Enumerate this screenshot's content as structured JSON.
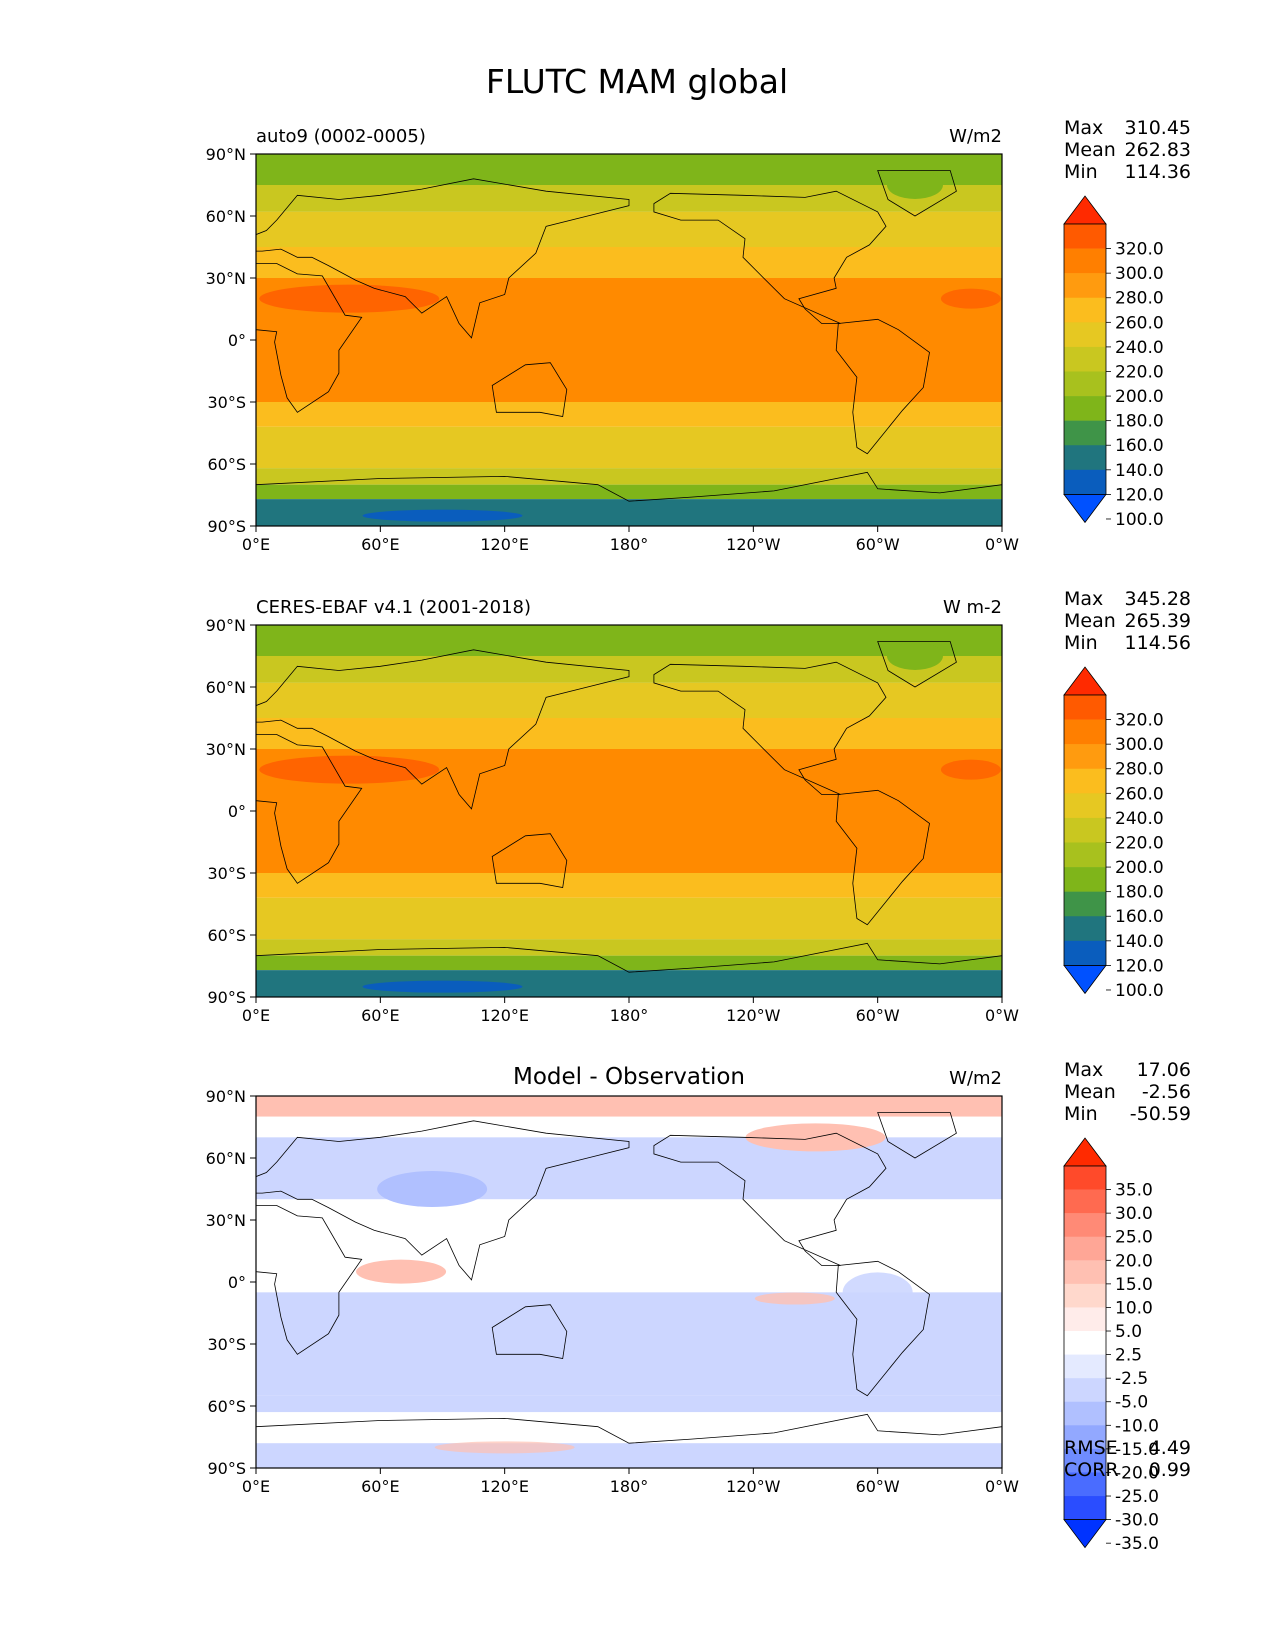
{
  "title": "FLUTC MAM global",
  "x_ticks": [
    "0°E",
    "60°E",
    "120°E",
    "180°",
    "120°W",
    "60°W",
    "0°W"
  ],
  "y_ticks": [
    "90°N",
    "60°N",
    "30°N",
    "0°",
    "30°S",
    "60°S",
    "90°S"
  ],
  "panels": [
    {
      "left_title": "auto9 (0002-0005)",
      "center_title": "",
      "units": "W/m2",
      "stats": [
        {
          "label": "Max",
          "value": "310.45"
        },
        {
          "label": "Mean",
          "value": "262.83"
        },
        {
          "label": "Min",
          "value": "114.36"
        }
      ],
      "colorbar_levels": [
        "320.0",
        "300.0",
        "280.0",
        "260.0",
        "240.0",
        "220.0",
        "200.0",
        "180.0",
        "160.0",
        "140.0",
        "120.0",
        "100.0"
      ],
      "colorbar_colors": [
        "#ff2a00",
        "#ff5a00",
        "#ff7f00",
        "#ff9b0f",
        "#fbbd1e",
        "#e6c822",
        "#c9c720",
        "#a8c11e",
        "#7fb51a",
        "#3f9448",
        "#20757e",
        "#0a5dbd",
        "#0051ff"
      ],
      "footer_stats": []
    },
    {
      "left_title": "CERES-EBAF v4.1 (2001-2018)",
      "center_title": "",
      "units": "W m-2",
      "stats": [
        {
          "label": "Max",
          "value": "345.28"
        },
        {
          "label": "Mean",
          "value": "265.39"
        },
        {
          "label": "Min",
          "value": "114.56"
        }
      ],
      "colorbar_levels": [
        "320.0",
        "300.0",
        "280.0",
        "260.0",
        "240.0",
        "220.0",
        "200.0",
        "180.0",
        "160.0",
        "140.0",
        "120.0",
        "100.0"
      ],
      "colorbar_colors": [
        "#ff2a00",
        "#ff5a00",
        "#ff7f00",
        "#ff9b0f",
        "#fbbd1e",
        "#e6c822",
        "#c9c720",
        "#a8c11e",
        "#7fb51a",
        "#3f9448",
        "#20757e",
        "#0a5dbd",
        "#0051ff"
      ],
      "footer_stats": []
    },
    {
      "left_title": "",
      "center_title": "Model - Observation",
      "units": "W/m2",
      "stats": [
        {
          "label": "Max",
          "value": "17.06"
        },
        {
          "label": "Mean",
          "value": "-2.56"
        },
        {
          "label": "Min",
          "value": "-50.59"
        }
      ],
      "colorbar_levels": [
        "35.0",
        "30.0",
        "25.0",
        "20.0",
        "15.0",
        "10.0",
        "5.0",
        "2.5",
        "-2.5",
        "-5.0",
        "-10.0",
        "-15.0",
        "-20.0",
        "-25.0",
        "-30.0",
        "-35.0"
      ],
      "colorbar_colors": [
        "#ff2a00",
        "#ff4a2a",
        "#ff6a50",
        "#ff8a76",
        "#ffa696",
        "#ffc0b2",
        "#ffd8cc",
        "#ffecea",
        "#ffffff",
        "#e4eaff",
        "#ccd6ff",
        "#b0c0ff",
        "#92a8ff",
        "#6f8cff",
        "#4a6cff",
        "#2a4dff",
        "#0033ff"
      ],
      "footer_stats": [
        {
          "label": "RMSE",
          "value": "4.49"
        },
        {
          "label": "CORR",
          "value": "0.99"
        }
      ]
    }
  ],
  "field_colors": {
    "polar_south": "#20757e",
    "polar_south_deep": "#0a5dbd",
    "sub_polar": "#7fb51a",
    "high_lat": "#c9c720",
    "mid_lat": "#e6c822",
    "subtropics": "#fbbd1e",
    "tropics": "#ff8a00",
    "hot": "#ff5a00",
    "diff_neutral": "#ffffff",
    "diff_neg": "#ccd6ff",
    "diff_pos": "#ffc0b2"
  }
}
